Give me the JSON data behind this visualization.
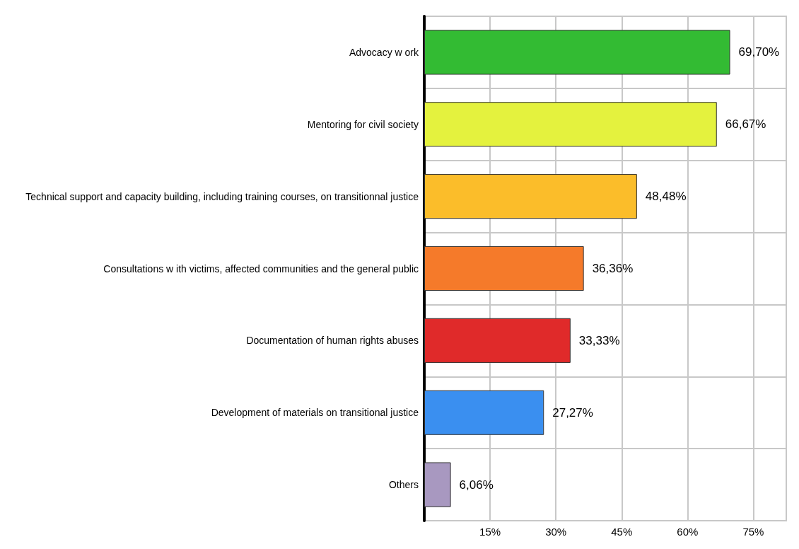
{
  "chart_data": {
    "type": "bar",
    "orientation": "horizontal",
    "categories": [
      "Advocacy w ork",
      "Mentoring for civil society",
      "Technical support and capacity building, including training courses, on transitionnal justice",
      "Consultations w ith victims, affected communities and the general public",
      "Documentation of human rights abuses",
      "Development of materials on transitional justice",
      "Others"
    ],
    "values": [
      69.7,
      66.67,
      48.48,
      36.36,
      33.33,
      27.27,
      6.06
    ],
    "value_labels": [
      "69,70%",
      "66,67%",
      "48,48%",
      "36,36%",
      "33,33%",
      "27,27%",
      "6,06%"
    ],
    "colors": [
      "#33bb33",
      "#e4f23e",
      "#fbbd2a",
      "#f57a2a",
      "#e02a2a",
      "#3a8ff0",
      "#a898c0"
    ],
    "xlim": [
      0,
      82.5
    ],
    "xticks": [
      {
        "value": 0,
        "label": null
      },
      {
        "value": 15,
        "label": "15%"
      },
      {
        "value": 30,
        "label": "30%"
      },
      {
        "value": 45,
        "label": "45%"
      },
      {
        "value": 60,
        "label": "60%"
      },
      {
        "value": 75,
        "label": "75%"
      }
    ],
    "grid": true
  }
}
